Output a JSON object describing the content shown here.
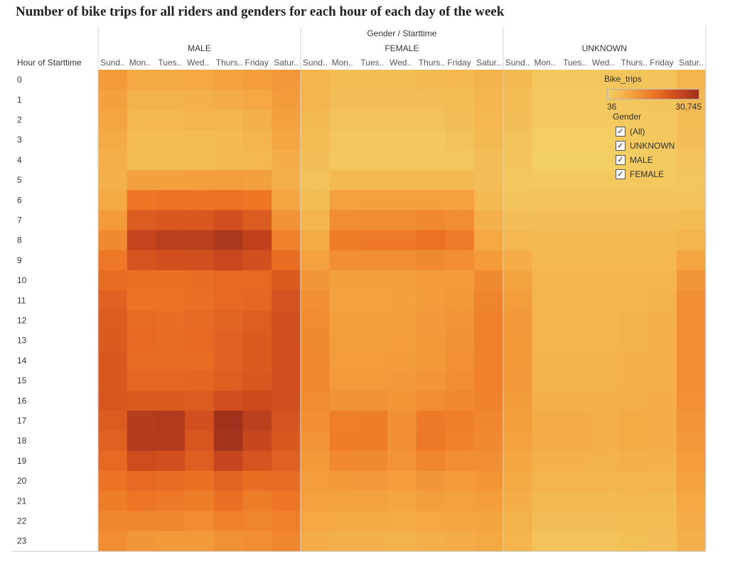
{
  "title": "Number of bike trips for all riders and genders for each hour of each day of the week",
  "chart_data": {
    "type": "heatmap",
    "column_header": "Gender / Starttime",
    "row_header": "Hour of Starttime",
    "genders": [
      "MALE",
      "FEMALE",
      "UNKNOWN"
    ],
    "days": [
      "Sund..",
      "Mon..",
      "Tues..",
      "Wed..",
      "Thurs..",
      "Friday",
      "Satur.."
    ],
    "hours": [
      "0",
      "1",
      "2",
      "3",
      "4",
      "5",
      "6",
      "7",
      "8",
      "9",
      "10",
      "11",
      "12",
      "13",
      "14",
      "15",
      "16",
      "17",
      "18",
      "19",
      "20",
      "21",
      "22",
      "23"
    ],
    "series": [
      {
        "name": "MALE",
        "values": [
          [
            2800,
            1500,
            1600,
            1700,
            2100,
            2600,
            3100
          ],
          [
            2300,
            900,
            900,
            1000,
            1300,
            1700,
            2700
          ],
          [
            1900,
            600,
            600,
            700,
            800,
            1000,
            2300
          ],
          [
            1400,
            400,
            400,
            400,
            500,
            700,
            1800
          ],
          [
            1100,
            400,
            400,
            400,
            500,
            600,
            1200
          ],
          [
            1000,
            2300,
            2300,
            2400,
            2500,
            2300,
            1100
          ],
          [
            1500,
            7500,
            8000,
            8000,
            8300,
            7600,
            1800
          ],
          [
            2800,
            13000,
            14000,
            14200,
            16500,
            13000,
            3600
          ],
          [
            4700,
            19800,
            22500,
            22800,
            26500,
            21500,
            5800
          ],
          [
            7200,
            15000,
            16000,
            16000,
            19000,
            16000,
            9000
          ],
          [
            9500,
            8500,
            8600,
            9000,
            10000,
            10000,
            13500
          ],
          [
            11500,
            8000,
            8300,
            8700,
            10000,
            10500,
            15500
          ],
          [
            13000,
            9500,
            9000,
            9800,
            11000,
            12500,
            16500
          ],
          [
            13500,
            10000,
            9500,
            10000,
            11500,
            13500,
            16500
          ],
          [
            14000,
            9700,
            9500,
            9700,
            11500,
            13500,
            16500
          ],
          [
            14000,
            10500,
            10500,
            10800,
            12500,
            14000,
            16500
          ],
          [
            14500,
            13500,
            13500,
            13000,
            16500,
            18000,
            16500
          ],
          [
            13000,
            24500,
            25500,
            16000,
            30745,
            22500,
            15000
          ],
          [
            11500,
            25000,
            25500,
            14500,
            29500,
            19500,
            14000
          ],
          [
            10000,
            17500,
            16500,
            12500,
            20000,
            15000,
            12000
          ],
          [
            8000,
            10000,
            9600,
            8600,
            11000,
            9000,
            9500
          ],
          [
            6500,
            7500,
            7300,
            6500,
            8800,
            6500,
            7500
          ],
          [
            5000,
            5200,
            5000,
            4600,
            6000,
            5500,
            6000
          ],
          [
            4200,
            3200,
            3000,
            3000,
            3800,
            4200,
            5000
          ]
        ]
      },
      {
        "name": "FEMALE",
        "values": [
          [
            800,
            400,
            400,
            400,
            500,
            600,
            900
          ],
          [
            700,
            300,
            300,
            300,
            300,
            400,
            700
          ],
          [
            500,
            200,
            200,
            200,
            200,
            300,
            600
          ],
          [
            400,
            100,
            100,
            100,
            100,
            200,
            500
          ],
          [
            300,
            100,
            100,
            100,
            100,
            100,
            300
          ],
          [
            200,
            500,
            500,
            500,
            500,
            500,
            300
          ],
          [
            400,
            2200,
            2300,
            2300,
            2300,
            2200,
            500
          ],
          [
            800,
            4200,
            4400,
            4400,
            4800,
            4200,
            1000
          ],
          [
            1400,
            6500,
            7000,
            7000,
            8000,
            6700,
            1700
          ],
          [
            2200,
            4000,
            4100,
            4100,
            4700,
            4200,
            2800
          ],
          [
            3200,
            2300,
            2300,
            2400,
            2700,
            2800,
            4700
          ],
          [
            4000,
            2100,
            2200,
            2300,
            2700,
            3000,
            5500
          ],
          [
            4500,
            2400,
            2400,
            2500,
            2900,
            3500,
            6000
          ],
          [
            4700,
            2500,
            2500,
            2600,
            3000,
            3700,
            6000
          ],
          [
            4800,
            2600,
            2600,
            2700,
            3000,
            3900,
            6000
          ],
          [
            4800,
            2800,
            2800,
            2900,
            3400,
            4300,
            6000
          ],
          [
            4600,
            3600,
            3600,
            3300,
            4300,
            4800,
            5800
          ],
          [
            4000,
            6300,
            6500,
            4100,
            7000,
            6200,
            5200
          ],
          [
            3500,
            6500,
            6600,
            4000,
            7200,
            5800,
            4800
          ],
          [
            3000,
            4800,
            4700,
            3500,
            5300,
            4300,
            4000
          ],
          [
            2600,
            3000,
            2900,
            2600,
            3200,
            2800,
            3300
          ],
          [
            2200,
            2200,
            2100,
            1900,
            2400,
            2100,
            2600
          ],
          [
            1700,
            1500,
            1500,
            1400,
            1700,
            1800,
            2000
          ],
          [
            1300,
            1000,
            1000,
            900,
            1100,
            1300,
            1600
          ]
        ]
      },
      {
        "name": "UNKNOWN",
        "values": [
          [
            500,
            100,
            100,
            100,
            150,
            200,
            700
          ],
          [
            400,
            80,
            80,
            80,
            100,
            150,
            500
          ],
          [
            300,
            60,
            60,
            60,
            80,
            100,
            400
          ],
          [
            200,
            40,
            40,
            40,
            50,
            70,
            300
          ],
          [
            150,
            36,
            36,
            36,
            40,
            50,
            200
          ],
          [
            100,
            80,
            80,
            80,
            80,
            80,
            120
          ],
          [
            150,
            200,
            200,
            200,
            200,
            200,
            200
          ],
          [
            300,
            300,
            300,
            300,
            300,
            300,
            400
          ],
          [
            600,
            500,
            500,
            500,
            500,
            500,
            800
          ],
          [
            1200,
            600,
            600,
            600,
            600,
            600,
            1800
          ],
          [
            2000,
            700,
            700,
            700,
            700,
            800,
            3200
          ],
          [
            2600,
            700,
            700,
            700,
            800,
            900,
            4000
          ],
          [
            2900,
            800,
            800,
            800,
            900,
            1000,
            4300
          ],
          [
            3000,
            800,
            800,
            800,
            900,
            1100,
            4300
          ],
          [
            3000,
            900,
            900,
            900,
            1000,
            1100,
            4300
          ],
          [
            2900,
            900,
            900,
            900,
            1000,
            1100,
            4200
          ],
          [
            2700,
            1000,
            1000,
            1000,
            1100,
            1200,
            3900
          ],
          [
            2400,
            1300,
            1300,
            1100,
            1400,
            1300,
            3500
          ],
          [
            2100,
            1300,
            1300,
            1100,
            1400,
            1200,
            3100
          ],
          [
            1800,
            1000,
            1000,
            900,
            1100,
            1000,
            2600
          ],
          [
            1500,
            700,
            700,
            700,
            800,
            700,
            2100
          ],
          [
            1200,
            500,
            500,
            500,
            600,
            500,
            1700
          ],
          [
            900,
            300,
            300,
            300,
            400,
            400,
            1300
          ],
          [
            700,
            200,
            200,
            200,
            250,
            300,
            1000
          ]
        ]
      }
    ],
    "color_scale": {
      "label": "Bike_trips",
      "min": 36,
      "max": 30745,
      "min_label": "36",
      "max_label": "30,745",
      "colors": [
        "#f3ce64",
        "#f4a441",
        "#ed7525",
        "#cf4b1e",
        "#a0321c"
      ]
    }
  },
  "legend": {
    "gender_title": "Gender",
    "items": [
      "(All)",
      "UNKNOWN",
      "MALE",
      "FEMALE"
    ],
    "check_glyph": "✓"
  }
}
